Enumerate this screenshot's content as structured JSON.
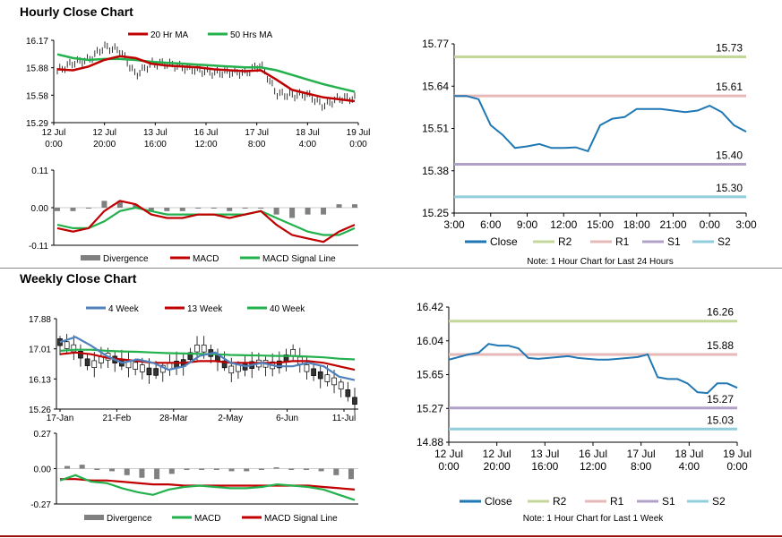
{
  "titles": {
    "hourly": "Hourly Close Chart",
    "weekly": "Weekly Close Chart"
  },
  "colors": {
    "ma_red": "#c00000",
    "ma_green": "#22b14c",
    "ma_blue": "#4f81bd",
    "close": "#1f77b4",
    "r2": "#c4d79b",
    "r1": "#e6b8b7",
    "s1": "#b1a0c7",
    "s2": "#92cddc",
    "macd_red": "#c00000",
    "signal_green": "#22b14c",
    "div_gray": "#808080"
  },
  "chart_data": [
    {
      "id": "hourly_price",
      "type": "line",
      "legend": [
        "20 Hr MA",
        "50 Hrs MA"
      ],
      "yticks": [
        "16.17",
        "15.88",
        "15.58",
        "15.29"
      ],
      "ylim": [
        15.29,
        16.17
      ],
      "xticks": [
        [
          "12 Jul",
          "0:00"
        ],
        [
          "12 Jul",
          "20:00"
        ],
        [
          "13 Jul",
          "16:00"
        ],
        [
          "16 Jul",
          "12:00"
        ],
        [
          "17 Jul",
          "8:00"
        ],
        [
          "18 Jul",
          "4:00"
        ],
        [
          "19 Jul",
          "0:00"
        ]
      ],
      "series": [
        {
          "name": "20 Hr MA",
          "values": [
            15.86,
            15.85,
            15.89,
            15.96,
            16.0,
            15.98,
            15.92,
            15.9,
            15.89,
            15.88,
            15.86,
            15.85,
            15.84,
            15.85,
            15.75,
            15.64,
            15.6,
            15.56,
            15.54,
            15.52
          ]
        },
        {
          "name": "50 Hrs MA",
          "values": [
            16.02,
            15.98,
            15.96,
            15.97,
            15.97,
            15.96,
            15.94,
            15.93,
            15.92,
            15.91,
            15.9,
            15.89,
            15.88,
            15.88,
            15.85,
            15.8,
            15.75,
            15.7,
            15.66,
            15.62
          ]
        },
        {
          "name": "Close",
          "values": [
            15.84,
            15.93,
            15.96,
            16.1,
            16.06,
            15.8,
            15.92,
            15.92,
            15.88,
            15.85,
            15.82,
            15.83,
            15.82,
            15.91,
            15.6,
            15.58,
            15.59,
            15.47,
            15.55,
            15.55
          ]
        }
      ]
    },
    {
      "id": "hourly_macd",
      "type": "line",
      "legend": [
        "Divergence",
        "MACD",
        "MACD Signal Line"
      ],
      "yticks": [
        "0.11",
        "0.00",
        "-0.11"
      ],
      "ylim": [
        -0.11,
        0.11
      ],
      "series": [
        {
          "name": "MACD",
          "values": [
            -0.06,
            -0.07,
            -0.06,
            -0.01,
            0.02,
            0.01,
            -0.02,
            -0.03,
            -0.03,
            -0.02,
            -0.02,
            -0.03,
            -0.02,
            -0.01,
            -0.05,
            -0.08,
            -0.09,
            -0.1,
            -0.07,
            -0.05
          ]
        },
        {
          "name": "MACD Signal Line",
          "values": [
            -0.05,
            -0.06,
            -0.06,
            -0.04,
            -0.01,
            0.0,
            -0.01,
            -0.02,
            -0.02,
            -0.02,
            -0.02,
            -0.02,
            -0.02,
            -0.01,
            -0.03,
            -0.05,
            -0.07,
            -0.08,
            -0.08,
            -0.06
          ]
        },
        {
          "name": "Divergence",
          "values": [
            -0.01,
            -0.01,
            0.0,
            0.02,
            0.02,
            0.01,
            -0.01,
            -0.01,
            -0.01,
            0.0,
            0.0,
            -0.01,
            0.0,
            0.0,
            -0.02,
            -0.03,
            -0.02,
            -0.02,
            0.01,
            0.01
          ]
        }
      ]
    },
    {
      "id": "hourly_levels",
      "type": "line",
      "yticks": [
        "15.77",
        "15.64",
        "15.51",
        "15.38",
        "15.25"
      ],
      "ylim": [
        15.25,
        15.77
      ],
      "xticks": [
        "3:00",
        "6:00",
        "9:00",
        "12:00",
        "15:00",
        "18:00",
        "21:00",
        "0:00",
        "3:00"
      ],
      "legend": [
        "Close",
        "R2",
        "R1",
        "S1",
        "S2"
      ],
      "note": "Note: 1 Hour Chart for Last 24 Hours",
      "levels": [
        {
          "name": "R2",
          "value": 15.73
        },
        {
          "name": "R1",
          "value": 15.61
        },
        {
          "name": "S1",
          "value": 15.4
        },
        {
          "name": "S2",
          "value": 15.3
        }
      ],
      "level_labels": [
        "15.73",
        "15.61",
        "15.40",
        "15.30"
      ],
      "series": [
        {
          "name": "Close",
          "values": [
            15.61,
            15.61,
            15.6,
            15.52,
            15.49,
            15.45,
            15.455,
            15.462,
            15.45,
            15.45,
            15.452,
            15.44,
            15.52,
            15.54,
            15.545,
            15.57,
            15.57,
            15.57,
            15.565,
            15.56,
            15.565,
            15.58,
            15.56,
            15.52,
            15.5
          ]
        }
      ]
    },
    {
      "id": "weekly_price",
      "type": "line",
      "legend": [
        "4 Week",
        "13 Week",
        "40 Week"
      ],
      "yticks": [
        "17.88",
        "17.01",
        "16.13",
        "15.26"
      ],
      "ylim": [
        15.26,
        17.88
      ],
      "xticks": [
        "17-Jan",
        "21-Feb",
        "28-Mar",
        "2-May",
        "6-Jun",
        "11-Jul"
      ],
      "series": [
        {
          "name": "4 Week",
          "values": [
            17.2,
            17.35,
            17.1,
            16.8,
            16.6,
            16.7,
            16.6,
            16.4,
            16.5,
            16.8,
            16.9,
            16.6,
            16.5,
            16.6,
            16.5,
            16.5,
            16.6,
            16.5,
            16.2,
            16.1
          ]
        },
        {
          "name": "13 Week",
          "values": [
            16.85,
            16.9,
            16.85,
            16.75,
            16.7,
            16.65,
            16.6,
            16.6,
            16.6,
            16.65,
            16.65,
            16.6,
            16.6,
            16.6,
            16.6,
            16.65,
            16.65,
            16.6,
            16.5,
            16.4
          ]
        },
        {
          "name": "40 Week",
          "values": [
            16.95,
            16.98,
            16.98,
            16.95,
            16.93,
            16.92,
            16.9,
            16.88,
            16.87,
            16.86,
            16.85,
            16.83,
            16.82,
            16.81,
            16.8,
            16.8,
            16.78,
            16.76,
            16.72,
            16.7
          ]
        },
        {
          "name": "Close",
          "values": [
            17.2,
            17.0,
            16.5,
            16.8,
            16.6,
            16.5,
            16.3,
            16.5,
            16.6,
            17.1,
            16.8,
            16.4,
            16.5,
            16.6,
            16.5,
            16.9,
            16.4,
            16.2,
            16.0,
            15.5
          ]
        }
      ]
    },
    {
      "id": "weekly_macd",
      "type": "line",
      "legend": [
        "Divergence",
        "MACD",
        "MACD Signal Line"
      ],
      "yticks": [
        "0.27",
        "0.00",
        "-0.27"
      ],
      "ylim": [
        -0.27,
        0.27
      ],
      "series": [
        {
          "name": "MACD",
          "values": [
            -0.09,
            -0.05,
            -0.1,
            -0.11,
            -0.15,
            -0.18,
            -0.2,
            -0.16,
            -0.14,
            -0.13,
            -0.14,
            -0.15,
            -0.15,
            -0.14,
            -0.12,
            -0.13,
            -0.14,
            -0.16,
            -0.2,
            -0.24
          ]
        },
        {
          "name": "MACD Signal Line",
          "values": [
            -0.08,
            -0.08,
            -0.09,
            -0.09,
            -0.1,
            -0.11,
            -0.12,
            -0.12,
            -0.13,
            -0.13,
            -0.13,
            -0.13,
            -0.13,
            -0.13,
            -0.13,
            -0.13,
            -0.13,
            -0.14,
            -0.15,
            -0.16
          ]
        },
        {
          "name": "Divergence",
          "values": [
            0.02,
            0.03,
            -0.01,
            -0.02,
            -0.05,
            -0.07,
            -0.08,
            -0.04,
            -0.01,
            0.0,
            -0.01,
            -0.02,
            -0.02,
            -0.01,
            0.01,
            0.0,
            -0.01,
            -0.02,
            -0.05,
            -0.08
          ]
        }
      ]
    },
    {
      "id": "weekly_levels",
      "type": "line",
      "yticks": [
        "16.42",
        "16.04",
        "15.65",
        "15.27",
        "14.88"
      ],
      "ylim": [
        14.88,
        16.42
      ],
      "xticks": [
        [
          "12 Jul",
          "0:00"
        ],
        [
          "12 Jul",
          "20:00"
        ],
        [
          "13 Jul",
          "16:00"
        ],
        [
          "16 Jul",
          "12:00"
        ],
        [
          "17 Jul",
          "8:00"
        ],
        [
          "18 Jul",
          "4:00"
        ],
        [
          "19 Jul",
          "0:00"
        ]
      ],
      "legend": [
        "Close",
        "R2",
        "R1",
        "S1",
        "S2"
      ],
      "note": "Note: 1 Hour Chart for Last 1 Week",
      "levels": [
        {
          "name": "R2",
          "value": 16.26
        },
        {
          "name": "R1",
          "value": 15.88
        },
        {
          "name": "S1",
          "value": 15.27
        },
        {
          "name": "S2",
          "value": 15.03
        }
      ],
      "level_labels": [
        "16.26",
        "15.88",
        "15.27",
        "15.03"
      ],
      "series": [
        {
          "name": "Close",
          "values": [
            15.82,
            15.85,
            15.88,
            15.9,
            16.0,
            15.98,
            15.98,
            15.95,
            15.84,
            15.83,
            15.84,
            15.85,
            15.86,
            15.84,
            15.83,
            15.82,
            15.82,
            15.83,
            15.84,
            15.85,
            15.88,
            15.62,
            15.6,
            15.6,
            15.55,
            15.45,
            15.44,
            15.55,
            15.55,
            15.5
          ]
        }
      ]
    }
  ]
}
